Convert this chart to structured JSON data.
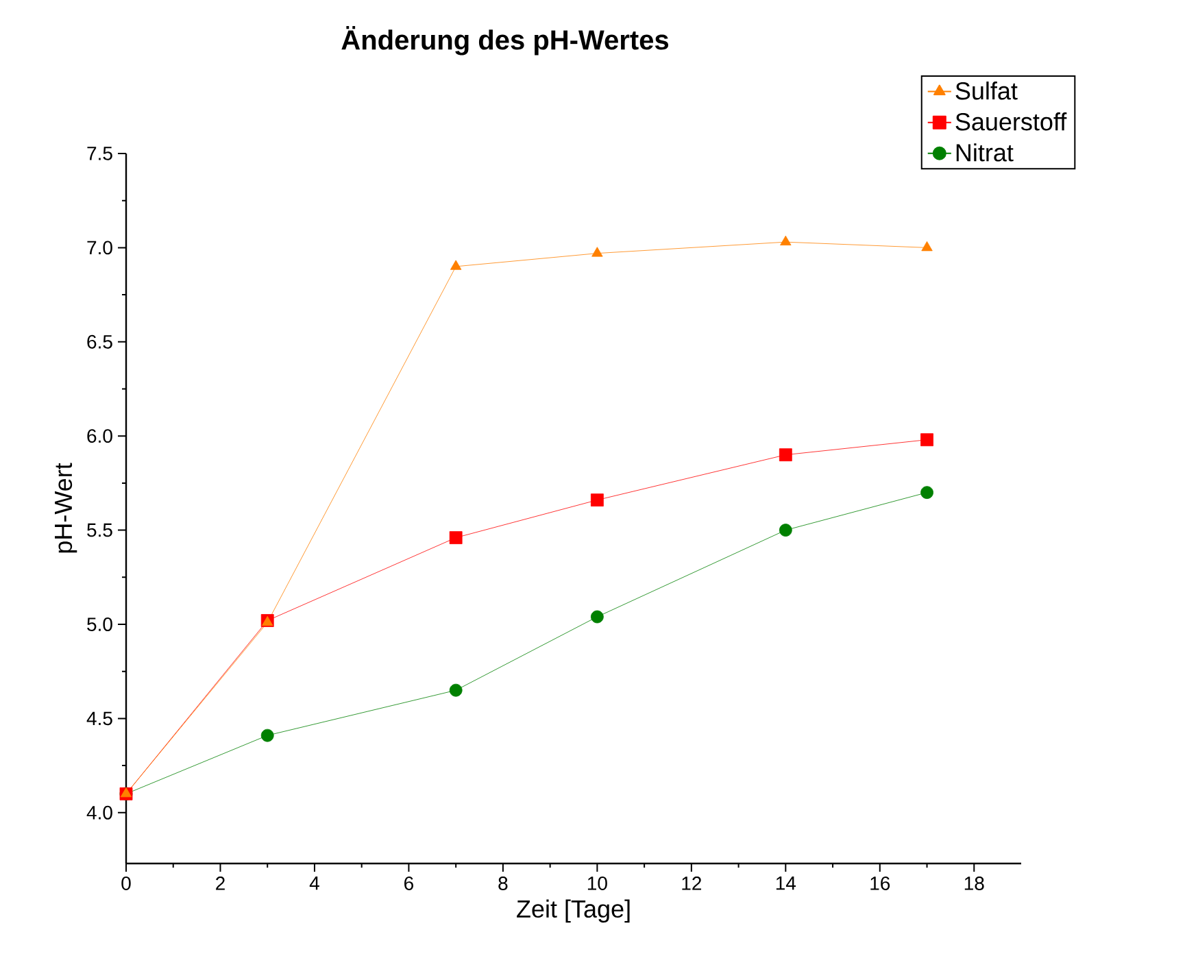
{
  "chart_data": {
    "type": "line",
    "title": "Änderung des pH-Wertes",
    "xlabel": "Zeit [Tage]",
    "ylabel": "pH-Wert",
    "x": [
      0,
      3,
      7,
      10,
      14,
      17
    ],
    "series": [
      {
        "name": "Sulfat",
        "color": "#ff8000",
        "marker": "triangle",
        "values": [
          4.1,
          5.01,
          6.9,
          6.97,
          7.03,
          7.0
        ]
      },
      {
        "name": "Sauerstoff",
        "color": "#ff0000",
        "marker": "square",
        "values": [
          4.1,
          5.02,
          5.46,
          5.66,
          5.9,
          5.98
        ]
      },
      {
        "name": "Nitrat",
        "color": "#008000",
        "marker": "circle",
        "values": [
          4.1,
          4.41,
          4.65,
          5.04,
          5.5,
          5.7
        ]
      }
    ],
    "xlim": [
      0,
      19
    ],
    "xticks": [
      0,
      2,
      4,
      6,
      8,
      10,
      12,
      14,
      16,
      18
    ],
    "ylim": [
      3.73,
      7.5
    ],
    "yticks": [
      {
        "value": 4,
        "label": "4.0"
      },
      4.5,
      {
        "value": 5,
        "label": "5.0"
      },
      5.5,
      {
        "value": 6,
        "label": "6.0"
      },
      6.5,
      {
        "value": 7,
        "label": "7.0"
      },
      7.5
    ],
    "grid": false,
    "legend": "top right",
    "line_style": "solid"
  }
}
